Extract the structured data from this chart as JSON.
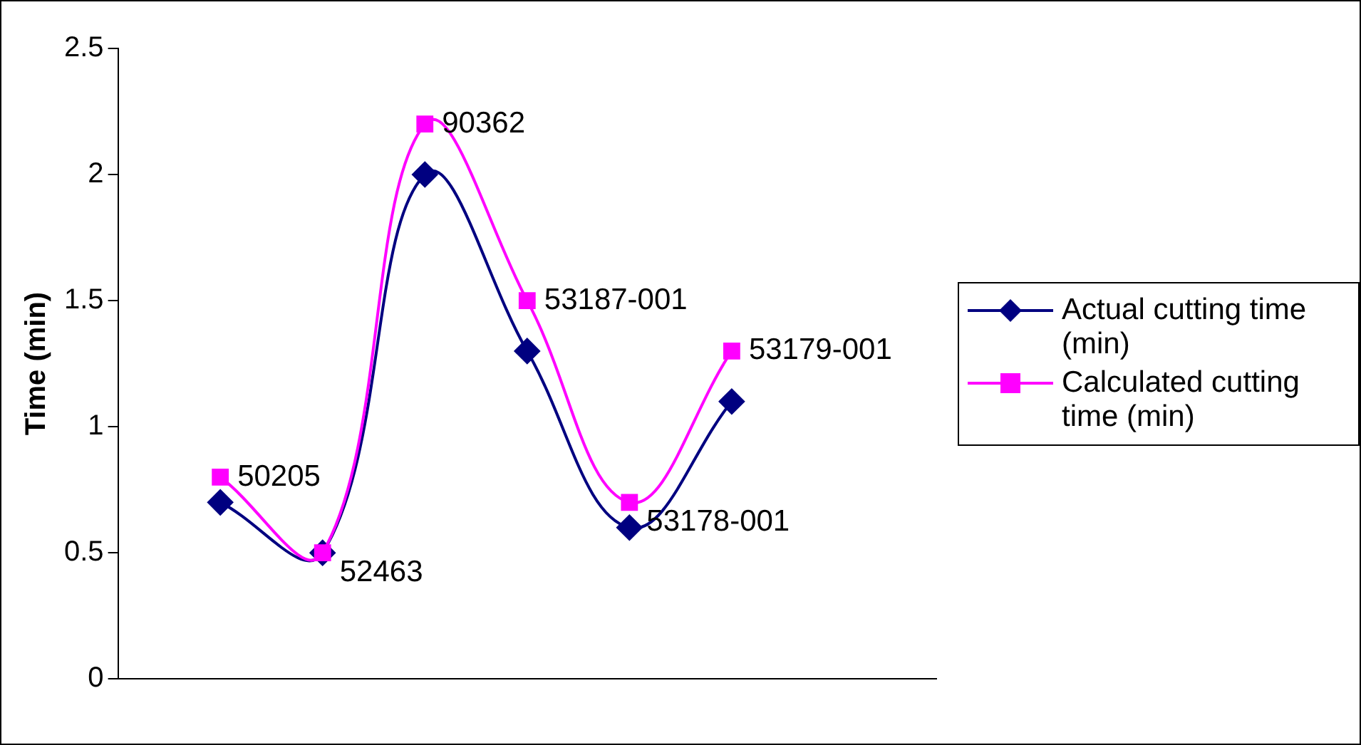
{
  "chart_data": {
    "type": "line",
    "ylabel": "Time (min)",
    "categories": [
      null,
      null,
      null,
      null,
      null,
      null
    ],
    "series": [
      {
        "name": "Actual cutting time (min)",
        "color": "#000080",
        "marker": "diamond",
        "values": [
          0.7,
          0.5,
          2.0,
          1.3,
          0.6,
          1.1
        ]
      },
      {
        "name": "Calculated cutting time (min)",
        "color": "#ff00ff",
        "marker": "square",
        "values": [
          0.8,
          0.5,
          2.2,
          1.5,
          0.7,
          1.3
        ]
      }
    ],
    "annotations": [
      "50205",
      "52463",
      "90362",
      "53187-001",
      "53178-001",
      "53179-001"
    ],
    "ylim": [
      0,
      2.5
    ],
    "yticks": [
      0,
      0.5,
      1,
      1.5,
      2,
      2.5
    ],
    "grid": false,
    "legend": "right"
  }
}
